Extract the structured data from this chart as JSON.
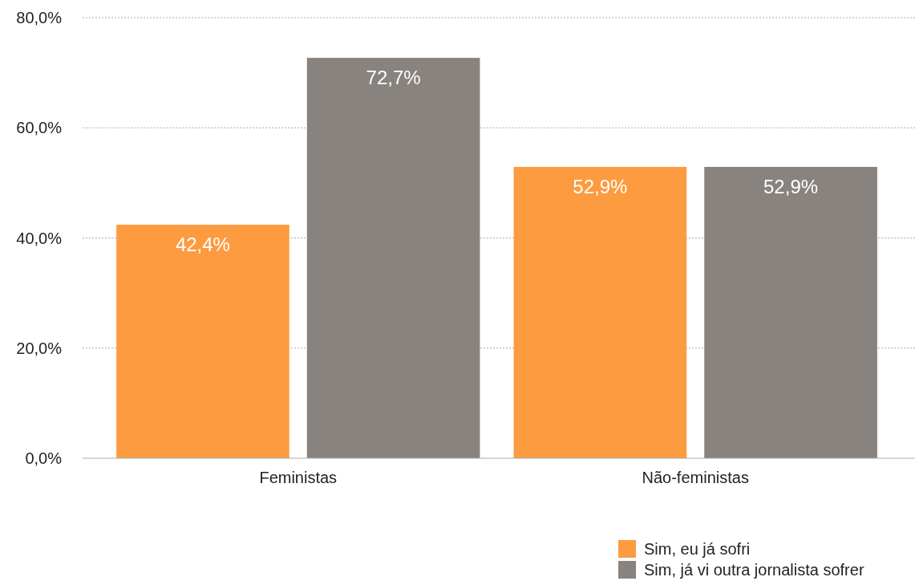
{
  "chart_data": {
    "type": "bar",
    "categories": [
      "Feministas",
      "Não-feministas"
    ],
    "series": [
      {
        "name": "Sim, eu já sofri",
        "color": "#fd9b40",
        "values": [
          42.4,
          52.9
        ],
        "value_labels": [
          "42,4%",
          "52,9%"
        ]
      },
      {
        "name": "Sim, já vi outra jornalista sofrer",
        "color": "#88837e",
        "values": [
          72.7,
          52.9
        ],
        "value_labels": [
          "72,7%",
          "52,9%"
        ]
      }
    ],
    "ylim": [
      0,
      80
    ],
    "yticks": [
      {
        "value": 0,
        "label": "0,0%"
      },
      {
        "value": 20,
        "label": "20,0%"
      },
      {
        "value": 40,
        "label": "40,0%"
      },
      {
        "value": 60,
        "label": "60,0%"
      },
      {
        "value": 80,
        "label": "80,0%"
      }
    ],
    "grid": "y",
    "legend": "bottom right"
  }
}
